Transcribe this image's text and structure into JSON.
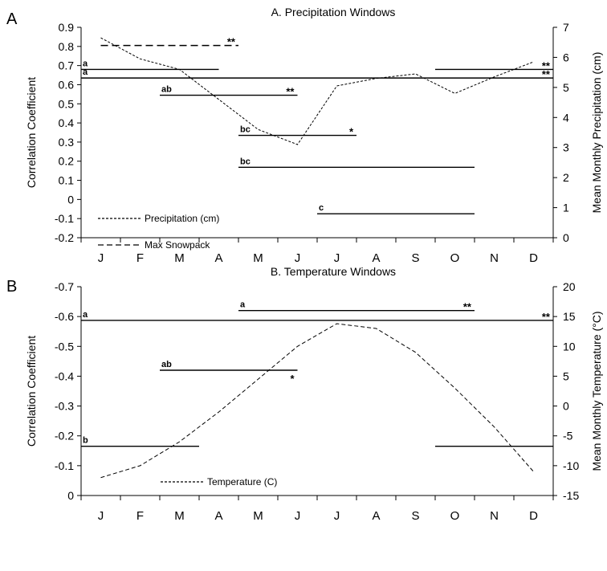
{
  "chart_data": [
    {
      "panel": "A",
      "type": "line",
      "title": "A. Precipitation Windows",
      "ylabel": "Correlation Coefficient",
      "ylabel_right": "Mean Monthly Precipitation (cm)",
      "categories": [
        "J",
        "F",
        "M",
        "A",
        "M",
        "J",
        "J",
        "A",
        "S",
        "O",
        "N",
        "D"
      ],
      "ylim": [
        -0.2,
        0.9
      ],
      "yticks": [
        "-0.2",
        "-0.1",
        "0",
        "0.1",
        "0.2",
        "0.3",
        "0.4",
        "0.5",
        "0.6",
        "0.7",
        "0.8",
        "0.9"
      ],
      "ylim_right": [
        0,
        7
      ],
      "yticks_right": [
        "0",
        "1",
        "2",
        "3",
        "4",
        "5",
        "6",
        "7"
      ],
      "series": [
        {
          "name": "Precipitation (cm)",
          "axis": "right",
          "style": "dotted",
          "values": [
            6.65,
            5.95,
            5.6,
            4.6,
            3.6,
            3.1,
            5.05,
            5.3,
            5.45,
            4.8,
            5.35,
            5.85
          ]
        }
      ],
      "windows": [
        {
          "label": "",
          "sig": "**",
          "start": 0.5,
          "end": 4.0,
          "r": 0.805,
          "style": "dashed"
        },
        {
          "label": "a",
          "sig": "",
          "start": 0.0,
          "end": 3.5,
          "r": 0.68
        },
        {
          "label": "a",
          "sig": "",
          "start": 0.0,
          "end": 10.0,
          "r": 0.635
        },
        {
          "label": "",
          "sig": "**",
          "start": 9.0,
          "end": 12.0,
          "r": 0.68
        },
        {
          "label": "",
          "sig": "**",
          "start": 10.0,
          "end": 12.0,
          "r": 0.635
        },
        {
          "label": "ab",
          "sig": "**",
          "start": 2.0,
          "end": 5.5,
          "r": 0.545
        },
        {
          "label": "bc",
          "sig": "*",
          "start": 4.0,
          "end": 7.0,
          "r": 0.335
        },
        {
          "label": "bc",
          "sig": "",
          "start": 4.0,
          "end": 10.0,
          "r": 0.168
        },
        {
          "label": "c",
          "sig": "",
          "start": 6.0,
          "end": 10.0,
          "r": -0.075
        }
      ],
      "legend": [
        {
          "label": "Precipitation (cm)",
          "style": "dotted"
        },
        {
          "label": "Max Snowpack",
          "style": "dashed"
        }
      ]
    },
    {
      "panel": "B",
      "type": "line",
      "title": "B. Temperature Windows",
      "ylabel": "Correlation Coefficient",
      "ylabel_right": "Mean Monthly Temperature (°C)",
      "categories": [
        "J",
        "F",
        "M",
        "A",
        "M",
        "J",
        "J",
        "A",
        "S",
        "O",
        "N",
        "D"
      ],
      "ylim": [
        0,
        -0.7
      ],
      "yticks": [
        "0",
        "-0.1",
        "-0.2",
        "-0.3",
        "-0.4",
        "-0.5",
        "-0.6",
        "-0.7"
      ],
      "ylim_right": [
        -15,
        20
      ],
      "yticks_right": [
        "-15",
        "-10",
        "-5",
        "0",
        "5",
        "10",
        "15",
        "20"
      ],
      "series": [
        {
          "name": "Temperature (C)",
          "axis": "right",
          "style": "dashed",
          "values": [
            -12.0,
            -10.0,
            -6.0,
            -1.0,
            4.5,
            10.0,
            13.8,
            13.0,
            9.0,
            3.0,
            -3.5,
            -11.0
          ]
        }
      ],
      "windows": [
        {
          "label": "a",
          "sig": "",
          "start": 0.0,
          "end": 10.0,
          "r": -0.587
        },
        {
          "label": "a",
          "sig": "**",
          "start": 4.0,
          "end": 10.0,
          "r": -0.62
        },
        {
          "label": "",
          "sig": "**",
          "start": 10.0,
          "end": 12.0,
          "r": -0.587
        },
        {
          "label": "ab",
          "sig": "*",
          "start": 2.0,
          "end": 5.5,
          "r": -0.42
        },
        {
          "label": "b",
          "sig": "",
          "start": 0.0,
          "end": 3.0,
          "r": -0.165
        },
        {
          "label": "",
          "sig": "",
          "start": 9.0,
          "end": 12.0,
          "r": -0.165
        }
      ],
      "legend": [
        {
          "label": "Temperature (C)",
          "style": "dotted"
        }
      ]
    }
  ]
}
